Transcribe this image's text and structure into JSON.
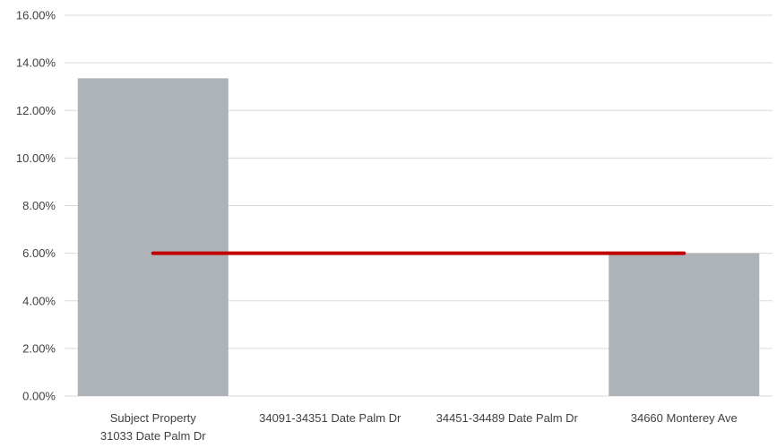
{
  "chart_data": {
    "type": "bar",
    "categories": [
      [
        "Subject Property",
        "31033 Date Palm Dr"
      ],
      [
        "34091-34351 Date Palm Dr"
      ],
      [
        "34451-34489 Date Palm Dr"
      ],
      [
        "34660 Monterey Ave"
      ]
    ],
    "series": [
      {
        "type": "bar",
        "values": [
          13.35,
          0,
          0,
          6.0
        ],
        "color": "#adb3b9"
      },
      {
        "type": "line",
        "values": [
          6.0,
          6.0,
          6.0,
          6.0
        ],
        "color": "#c00000"
      }
    ],
    "ylim": [
      0,
      16
    ],
    "yticks": [
      "0.00%",
      "2.00%",
      "4.00%",
      "6.00%",
      "8.00%",
      "10.00%",
      "12.00%",
      "14.00%",
      "16.00%"
    ],
    "ytick_values": [
      0,
      2,
      4,
      6,
      8,
      10,
      12,
      14,
      16
    ],
    "grid": true,
    "legend": "none",
    "gridline_color": "#d9d9d9"
  }
}
